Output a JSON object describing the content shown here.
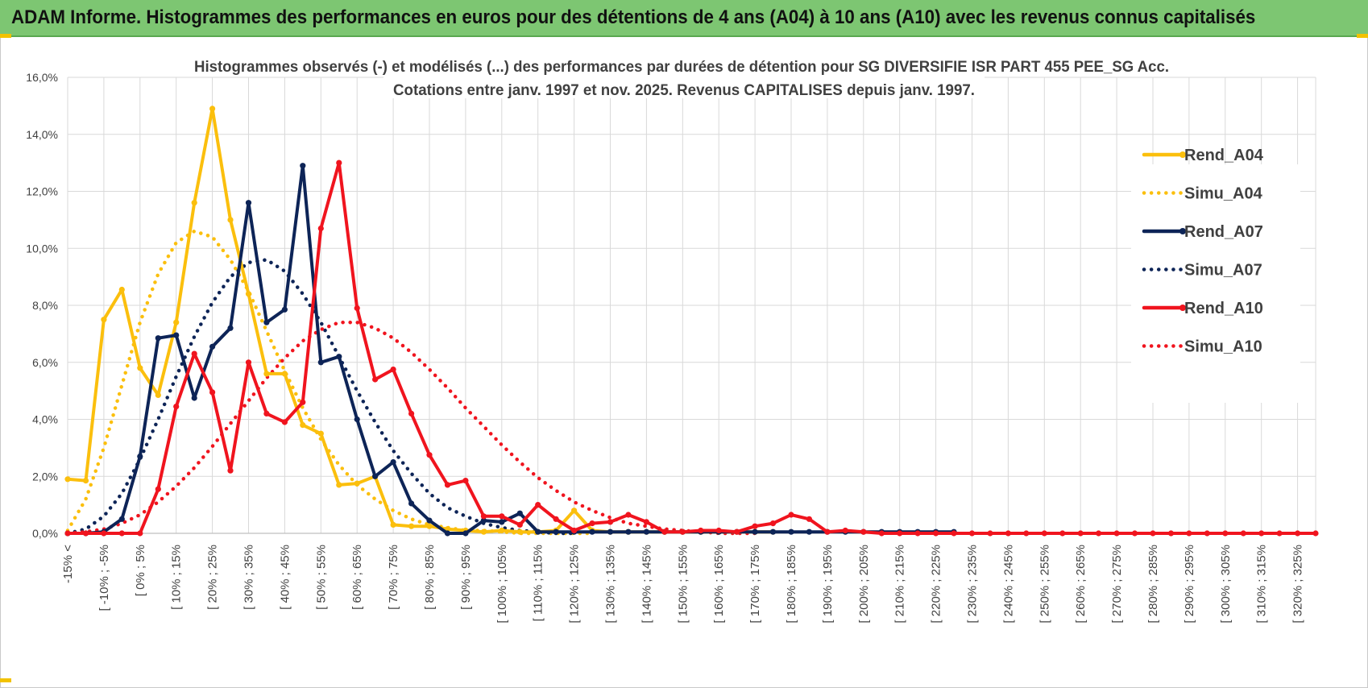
{
  "banner": {
    "title": "ADAM Informe. Histogrammes des performances en euros pour des détentions de 4 ans (A04) à 10 ans (A10) avec les revenus connus capitalisés"
  },
  "colors": {
    "banner_bg": "#7dc672",
    "A04": "#fbbf0d",
    "A07": "#0d2457",
    "A10": "#f0141e",
    "grid": "#d9d9d9",
    "axis_text": "#404040"
  },
  "chart_data": {
    "type": "line",
    "title_line1": "Histogrammes observés (-) et modélisés (...) des performances par durées de détention pour SG DIVERSIFIE ISR PART 455 PEE_SG Acc.",
    "title_line2": "Cotations entre janv. 1997 et nov. 2025. Revenus CAPITALISES depuis janv. 1997.",
    "ylim": [
      0,
      16
    ],
    "yticks": [
      "0,0%",
      "2,0%",
      "4,0%",
      "6,0%",
      "8,0%",
      "10,0%",
      "12,0%",
      "14,0%",
      "16,0%"
    ],
    "grid": true,
    "legend_position": "right",
    "x_tick_labels": [
      "-15% <",
      "[ -10% ; -5%",
      "[ 0% ; 5%",
      "[ 10% ; 15%",
      "[ 20% ; 25%",
      "[ 30% ; 35%",
      "[ 40% ; 45%",
      "[ 50% ; 55%",
      "[ 60% ; 65%",
      "[ 70% ; 75%",
      "[ 80% ; 85%",
      "[ 90% ; 95%",
      "[ 100% ; 105%",
      "[ 110% ; 115%",
      "[ 120% ; 125%",
      "[ 130% ; 135%",
      "[ 140% ; 145%",
      "[ 150% ; 155%",
      "[ 160% ; 165%",
      "[ 170% ; 175%",
      "[ 180% ; 185%",
      "[ 190% ; 195%",
      "[ 200% ; 205%",
      "[ 210% ; 215%",
      "[ 220% ; 225%",
      "[ 230% ; 235%",
      "[ 240% ; 245%",
      "[ 250% ; 255%",
      "[ 260% ; 265%",
      "[ 270% ; 275%",
      "[ 280% ; 285%",
      "[ 290% ; 295%",
      "[ 300% ; 305%",
      "[ 310% ; 315%",
      "[ 320% ; 325%"
    ],
    "series": [
      {
        "name": "Rend_A04",
        "style": "solid",
        "color": "#fbbf0d",
        "values": [
          1.9,
          1.85,
          7.5,
          8.55,
          5.8,
          4.85,
          7.4,
          11.6,
          14.9,
          11.0,
          8.4,
          5.6,
          5.6,
          3.8,
          3.5,
          1.7,
          1.75,
          2.0,
          0.3,
          0.25,
          0.25,
          0.15,
          0.1,
          0.05,
          0.1,
          0.05,
          0.05,
          0.1,
          0.8,
          0.1,
          0.05,
          0.05,
          0.05,
          0.05,
          0.05,
          0.05,
          0.05,
          0.05,
          0.05,
          0.05
        ]
      },
      {
        "name": "Simu_A04",
        "style": "dotted",
        "color": "#fbbf0d",
        "values": [
          0.1,
          1.2,
          3.0,
          5.2,
          7.4,
          9.1,
          10.2,
          10.6,
          10.4,
          9.6,
          8.5,
          7.1,
          5.7,
          4.4,
          3.3,
          2.4,
          1.7,
          1.2,
          0.8,
          0.5,
          0.3,
          0.2,
          0.1,
          0.1,
          0.05,
          0.0,
          0.0,
          0.0,
          0.0,
          0.0
        ]
      },
      {
        "name": "Rend_A07",
        "style": "solid",
        "color": "#0d2457",
        "values": [
          0.0,
          0.0,
          0.05,
          0.5,
          2.7,
          6.85,
          6.95,
          4.75,
          6.55,
          7.2,
          11.6,
          7.4,
          7.85,
          12.9,
          6.0,
          6.2,
          4.0,
          2.0,
          2.5,
          1.05,
          0.45,
          0.0,
          0.0,
          0.45,
          0.4,
          0.7,
          0.05,
          0.05,
          0.05,
          0.05,
          0.05,
          0.05,
          0.05,
          0.05,
          0.05,
          0.05,
          0.05,
          0.05,
          0.05,
          0.05,
          0.05,
          0.05,
          0.05,
          0.05,
          0.05,
          0.05,
          0.05,
          0.05,
          0.05,
          0.05
        ]
      },
      {
        "name": "Simu_A07",
        "style": "dotted",
        "color": "#0d2457",
        "values": [
          0.0,
          0.15,
          0.6,
          1.4,
          2.6,
          4.0,
          5.5,
          6.9,
          8.1,
          9.0,
          9.5,
          9.6,
          9.2,
          8.4,
          7.4,
          6.2,
          5.0,
          3.9,
          2.9,
          2.1,
          1.4,
          0.9,
          0.6,
          0.35,
          0.2,
          0.1,
          0.05,
          0.0,
          0.0
        ]
      },
      {
        "name": "Rend_A10",
        "style": "solid",
        "color": "#f0141e",
        "values": [
          0.0,
          0.0,
          0.0,
          0.0,
          0.0,
          1.55,
          4.45,
          6.3,
          4.95,
          2.2,
          6.0,
          4.2,
          3.9,
          4.6,
          10.7,
          13.0,
          7.9,
          5.4,
          5.75,
          4.2,
          2.75,
          1.7,
          1.85,
          0.6,
          0.6,
          0.3,
          1.0,
          0.5,
          0.1,
          0.35,
          0.4,
          0.65,
          0.4,
          0.05,
          0.05,
          0.1,
          0.1,
          0.05,
          0.25,
          0.35,
          0.65,
          0.5,
          0.05,
          0.1,
          0.05,
          0.0,
          0.0,
          0.0,
          0.0,
          0.0,
          0.0,
          0.0,
          0.0,
          0.0,
          0.0,
          0.0,
          0.0,
          0.0,
          0.0,
          0.0,
          0.0,
          0.0,
          0.0,
          0.0,
          0.0,
          0.0,
          0.0,
          0.0,
          0.0,
          0.0
        ]
      },
      {
        "name": "Simu_A10",
        "style": "dotted",
        "color": "#f0141e",
        "values": [
          0.0,
          0.05,
          0.15,
          0.35,
          0.65,
          1.1,
          1.65,
          2.3,
          3.05,
          3.85,
          4.65,
          5.45,
          6.15,
          6.75,
          7.15,
          7.4,
          7.4,
          7.2,
          6.85,
          6.35,
          5.75,
          5.1,
          4.4,
          3.75,
          3.1,
          2.5,
          1.95,
          1.5,
          1.1,
          0.8,
          0.55,
          0.35,
          0.25,
          0.15,
          0.1,
          0.05,
          0.0,
          0.0,
          0.0
        ]
      }
    ]
  }
}
